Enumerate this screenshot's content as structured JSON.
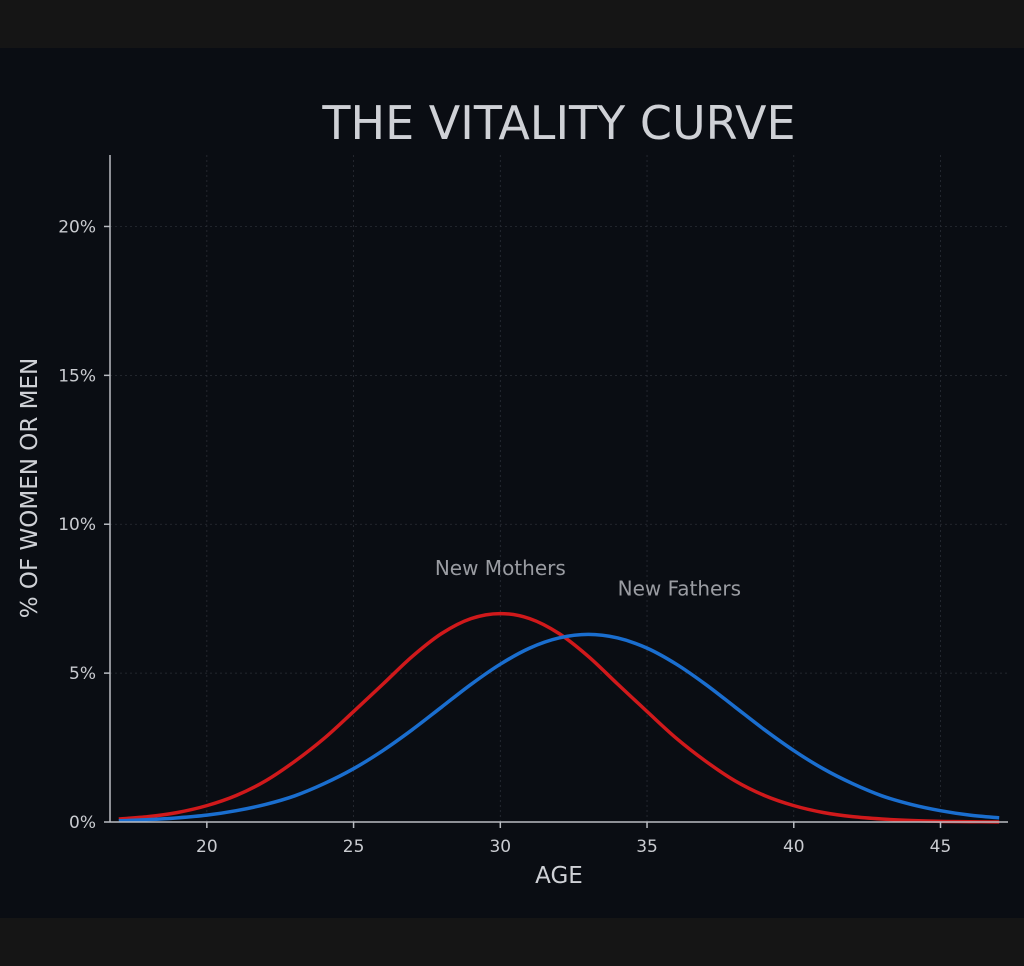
{
  "chart_data": {
    "type": "line",
    "title": "THE VITALITY CURVE",
    "xlabel": "AGE",
    "ylabel": "% OF WOMEN OR MEN",
    "xlim": [
      16.7,
      47.3
    ],
    "ylim": [
      0,
      22.4
    ],
    "xticks": [
      20,
      25,
      30,
      35,
      40,
      45
    ],
    "xtick_labels": [
      "20",
      "25",
      "30",
      "35",
      "40",
      "45"
    ],
    "yticks": [
      0,
      5,
      10,
      15,
      20
    ],
    "ytick_labels": [
      "0%",
      "5%",
      "10%",
      "15%",
      "20%"
    ],
    "grid": true,
    "x": [
      17,
      18,
      19,
      20,
      21,
      22,
      23,
      24,
      25,
      26,
      27,
      28,
      29,
      30,
      31,
      32,
      33,
      34,
      35,
      36,
      37,
      38,
      39,
      40,
      41,
      42,
      43,
      44,
      45,
      46,
      47
    ],
    "series": [
      {
        "name": "New Mothers",
        "color": "#d0191b",
        "values": [
          0.1,
          0.18,
          0.32,
          0.55,
          0.89,
          1.38,
          2.04,
          2.81,
          3.71,
          4.63,
          5.56,
          6.33,
          6.83,
          7.0,
          6.83,
          6.33,
          5.56,
          4.63,
          3.71,
          2.81,
          2.04,
          1.38,
          0.89,
          0.55,
          0.32,
          0.18,
          0.1,
          0.05,
          0.02,
          0.01,
          0.0
        ]
      },
      {
        "name": "New Fathers",
        "color": "#1a6ecf",
        "values": [
          0.04,
          0.08,
          0.14,
          0.23,
          0.38,
          0.59,
          0.88,
          1.29,
          1.79,
          2.4,
          3.1,
          3.86,
          4.62,
          5.3,
          5.84,
          6.18,
          6.3,
          6.18,
          5.84,
          5.3,
          4.62,
          3.86,
          3.1,
          2.4,
          1.79,
          1.29,
          0.88,
          0.59,
          0.38,
          0.23,
          0.14
        ]
      }
    ],
    "annotations": [
      {
        "text": "New Mothers",
        "x": 30,
        "y": 8.3
      },
      {
        "text": "New Fathers",
        "x": 36.1,
        "y": 7.6
      }
    ]
  }
}
